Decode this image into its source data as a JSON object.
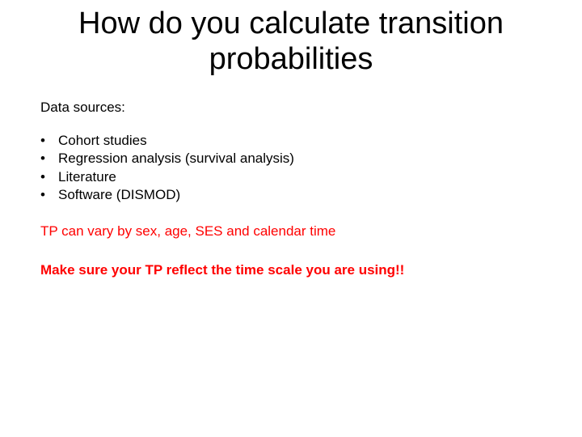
{
  "title_line1": "How do you calculate transition",
  "title_line2": "probabilities",
  "subheading": "Data sources:",
  "bullets": {
    "b0": "Cohort studies",
    "b1": "Regression analysis (survival analysis)",
    "b2": "Literature",
    "b3": "Software (DISMOD)"
  },
  "note1": "TP can vary by sex, age, SES and calendar time",
  "note2": "Make sure your TP reflect the time scale you are using!!",
  "colors": {
    "text": "#000000",
    "highlight": "#ff0000",
    "background": "#ffffff"
  },
  "typography": {
    "title_fontsize": 38,
    "body_fontsize": 17,
    "font_family": "Arial"
  }
}
